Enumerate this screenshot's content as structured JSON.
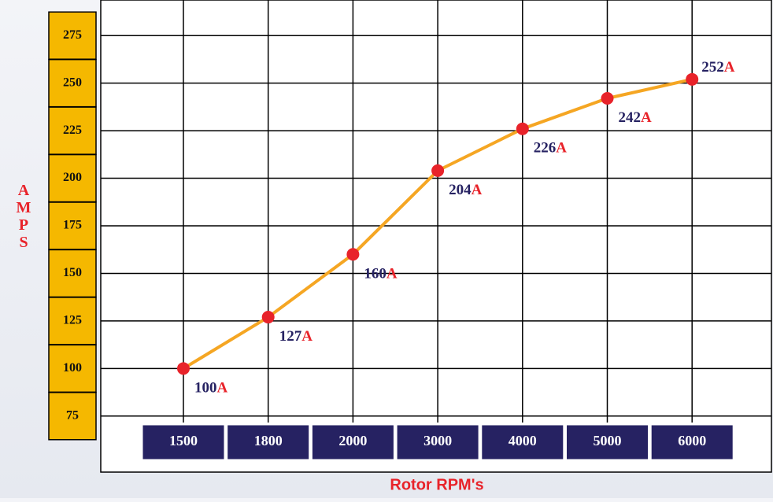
{
  "chart_data": {
    "type": "line",
    "y_axis_label": "AMPS",
    "x_axis_label": "Rotor RPM's",
    "categories": [
      "1500",
      "1800",
      "2000",
      "3000",
      "4000",
      "5000",
      "6000"
    ],
    "values": [
      100,
      127,
      160,
      204,
      226,
      242,
      252
    ],
    "unit": "A",
    "color": "#f5a623",
    "marker_color": "#e8232a",
    "ylim": [
      62.5,
      287.5
    ],
    "yticks": [
      75,
      100,
      125,
      150,
      175,
      200,
      225,
      250,
      275
    ],
    "grid": true
  }
}
